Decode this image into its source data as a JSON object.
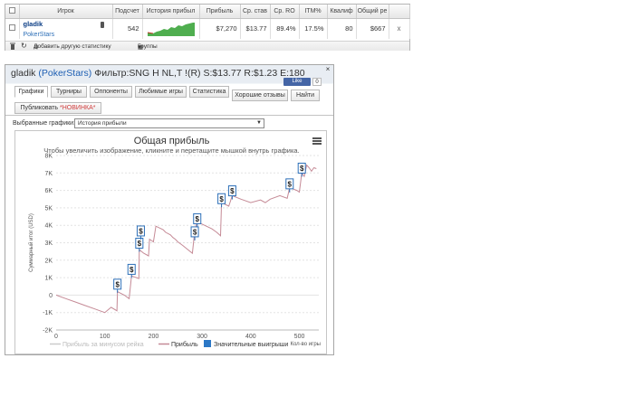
{
  "stats_table": {
    "headers": [
      "",
      "Игрок",
      "Подсчет",
      "История прибыл",
      "Прибыль",
      "Ср. став",
      "Ср. RO",
      "ITM%",
      "Квалиф",
      "Общий ре",
      ""
    ],
    "row": {
      "player": "gladik",
      "site": "PokerStars",
      "count": "542",
      "profit": "$7,270",
      "avg_stake": "$13.77",
      "avg_roi": "89.4%",
      "itm": "17.5%",
      "qualif": "80",
      "total": "$667",
      "remove": "x"
    },
    "footer": {
      "add_stat": "Добавить другую статистику",
      "groups": "Группы"
    }
  },
  "window": {
    "title_name": "gladik",
    "title_site": "(PokerStars)",
    "title_filter": "Фильтр:SNG H NL,T !(R) S:$13.77 R:$1.23 E:180",
    "like_label": "Like",
    "like_count": "0",
    "close": "×"
  },
  "tabs": [
    {
      "label": "Графики",
      "active": true
    },
    {
      "label": "Турниры",
      "active": false
    },
    {
      "label": "Оппоненты",
      "active": false
    },
    {
      "label": "Любимые игры",
      "active": false
    },
    {
      "label": "Статистика",
      "active": false
    },
    {
      "label": "Хорошие отзывы",
      "active": false
    },
    {
      "label": "Найти",
      "active": false
    }
  ],
  "publish_tab": {
    "label": "Публиковать",
    "badge": "*НОВИНКА*"
  },
  "chart_selector": {
    "label": "Выбранные графики:",
    "value": "История прибыли"
  },
  "chart_data": {
    "type": "line",
    "title": "Общая прибыль",
    "subtitle": "Чтобы увеличить изображение, кликните и перетащите мышкой внутрь графика.",
    "xlabel": "Кол-во игры",
    "ylabel": "Суммарный итог (USD)",
    "xlim": [
      0,
      540
    ],
    "ylim": [
      -2000,
      8000
    ],
    "x_ticks": [
      0,
      100,
      200,
      300,
      400,
      500
    ],
    "y_ticks": [
      -2000,
      -1000,
      0,
      1000,
      2000,
      3000,
      4000,
      5000,
      6000,
      7000,
      8000
    ],
    "y_tick_labels": [
      "-2K",
      "-1K",
      "0",
      "1K",
      "2K",
      "3K",
      "4K",
      "5K",
      "6K",
      "7K",
      "8K"
    ],
    "grid": true,
    "legend": [
      "Прибыль за минусом рейка",
      "Прибыль",
      "Значительные выигрыши"
    ],
    "series": [
      {
        "name": "Прибыль",
        "color": "#c58a96",
        "x": [
          0,
          20,
          40,
          60,
          80,
          100,
          113,
          125,
          126,
          140,
          150,
          155,
          170,
          171,
          180,
          190,
          192,
          200,
          205,
          220,
          225,
          235,
          240,
          245,
          250,
          260,
          280,
          285,
          290,
          305,
          320,
          330,
          338,
          340,
          355,
          362,
          380,
          400,
          420,
          430,
          440,
          460,
          475,
          480,
          495,
          500,
          505,
          510,
          515,
          520,
          525,
          530,
          535
        ],
        "values": [
          0,
          -200,
          -400,
          -600,
          -800,
          -1000,
          -700,
          -900,
          200,
          0,
          -200,
          1100,
          950,
          2600,
          2400,
          2250,
          3200,
          3050,
          3950,
          3750,
          3600,
          3450,
          3300,
          3200,
          3050,
          2850,
          2400,
          3700,
          4200,
          4000,
          3800,
          3600,
          3400,
          5300,
          5100,
          5700,
          5500,
          5300,
          5450,
          5300,
          5500,
          5700,
          5550,
          6150,
          6000,
          5900,
          7000,
          6800,
          7450,
          7300,
          7100,
          7300,
          7250
        ]
      }
    ],
    "big_wins": [
      {
        "x": 126,
        "y": 600,
        "label": "$"
      },
      {
        "x": 155,
        "y": 1450,
        "label": "$"
      },
      {
        "x": 171,
        "y": 2950,
        "label": "$"
      },
      {
        "x": 174,
        "y": 3650,
        "label": "$"
      },
      {
        "x": 285,
        "y": 3600,
        "label": "$"
      },
      {
        "x": 290,
        "y": 4350,
        "label": "$"
      },
      {
        "x": 340,
        "y": 5500,
        "label": "$"
      },
      {
        "x": 362,
        "y": 5950,
        "label": "$"
      },
      {
        "x": 480,
        "y": 6350,
        "label": "$"
      },
      {
        "x": 505,
        "y": 7250,
        "label": "$"
      }
    ]
  }
}
